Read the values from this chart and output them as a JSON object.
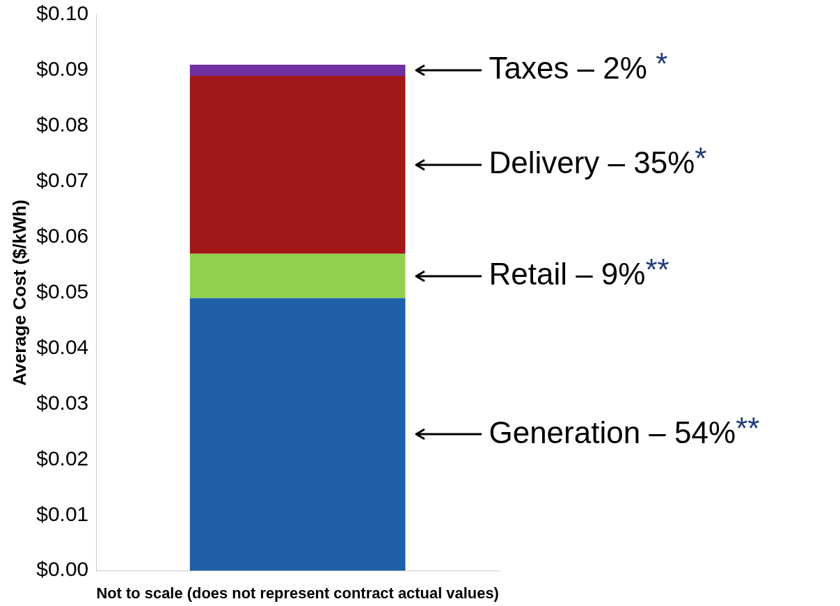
{
  "chart_data": {
    "type": "bar",
    "stacked": true,
    "xlabel": "Not to scale (does not represent contract actual values)",
    "ylabel": "Average Cost ($/kWh)",
    "categories": [
      null
    ],
    "series": [
      {
        "name": "Generation – 54%**",
        "color": "#1f5fa8",
        "values": [
          0.049
        ]
      },
      {
        "name": "Retail – 9%**",
        "color": "#92d050",
        "values": [
          0.008
        ]
      },
      {
        "name": "Delivery – 35%*",
        "color": "#a01818",
        "values": [
          0.032
        ]
      },
      {
        "name": "Taxes – 2% *",
        "color": "#7030a0",
        "values": [
          0.002
        ]
      }
    ],
    "ylim": [
      0,
      0.1
    ],
    "yticks": [
      {
        "value": 0,
        "label": "$0.00"
      },
      {
        "value": 0.01,
        "label": "$0.01"
      },
      {
        "value": 0.02,
        "label": "$0.02"
      },
      {
        "value": 0.03,
        "label": "$0.03"
      },
      {
        "value": 0.04,
        "label": "$0.04"
      },
      {
        "value": 0.05,
        "label": "$0.05"
      },
      {
        "value": 0.06,
        "label": "$0.06"
      },
      {
        "value": 0.07,
        "label": "$0.07"
      },
      {
        "value": 0.08,
        "label": "$0.08"
      },
      {
        "value": 0.09,
        "label": "$0.09"
      },
      {
        "value": 0.1,
        "label": "$0.10"
      }
    ],
    "grid": false,
    "legend": false
  }
}
